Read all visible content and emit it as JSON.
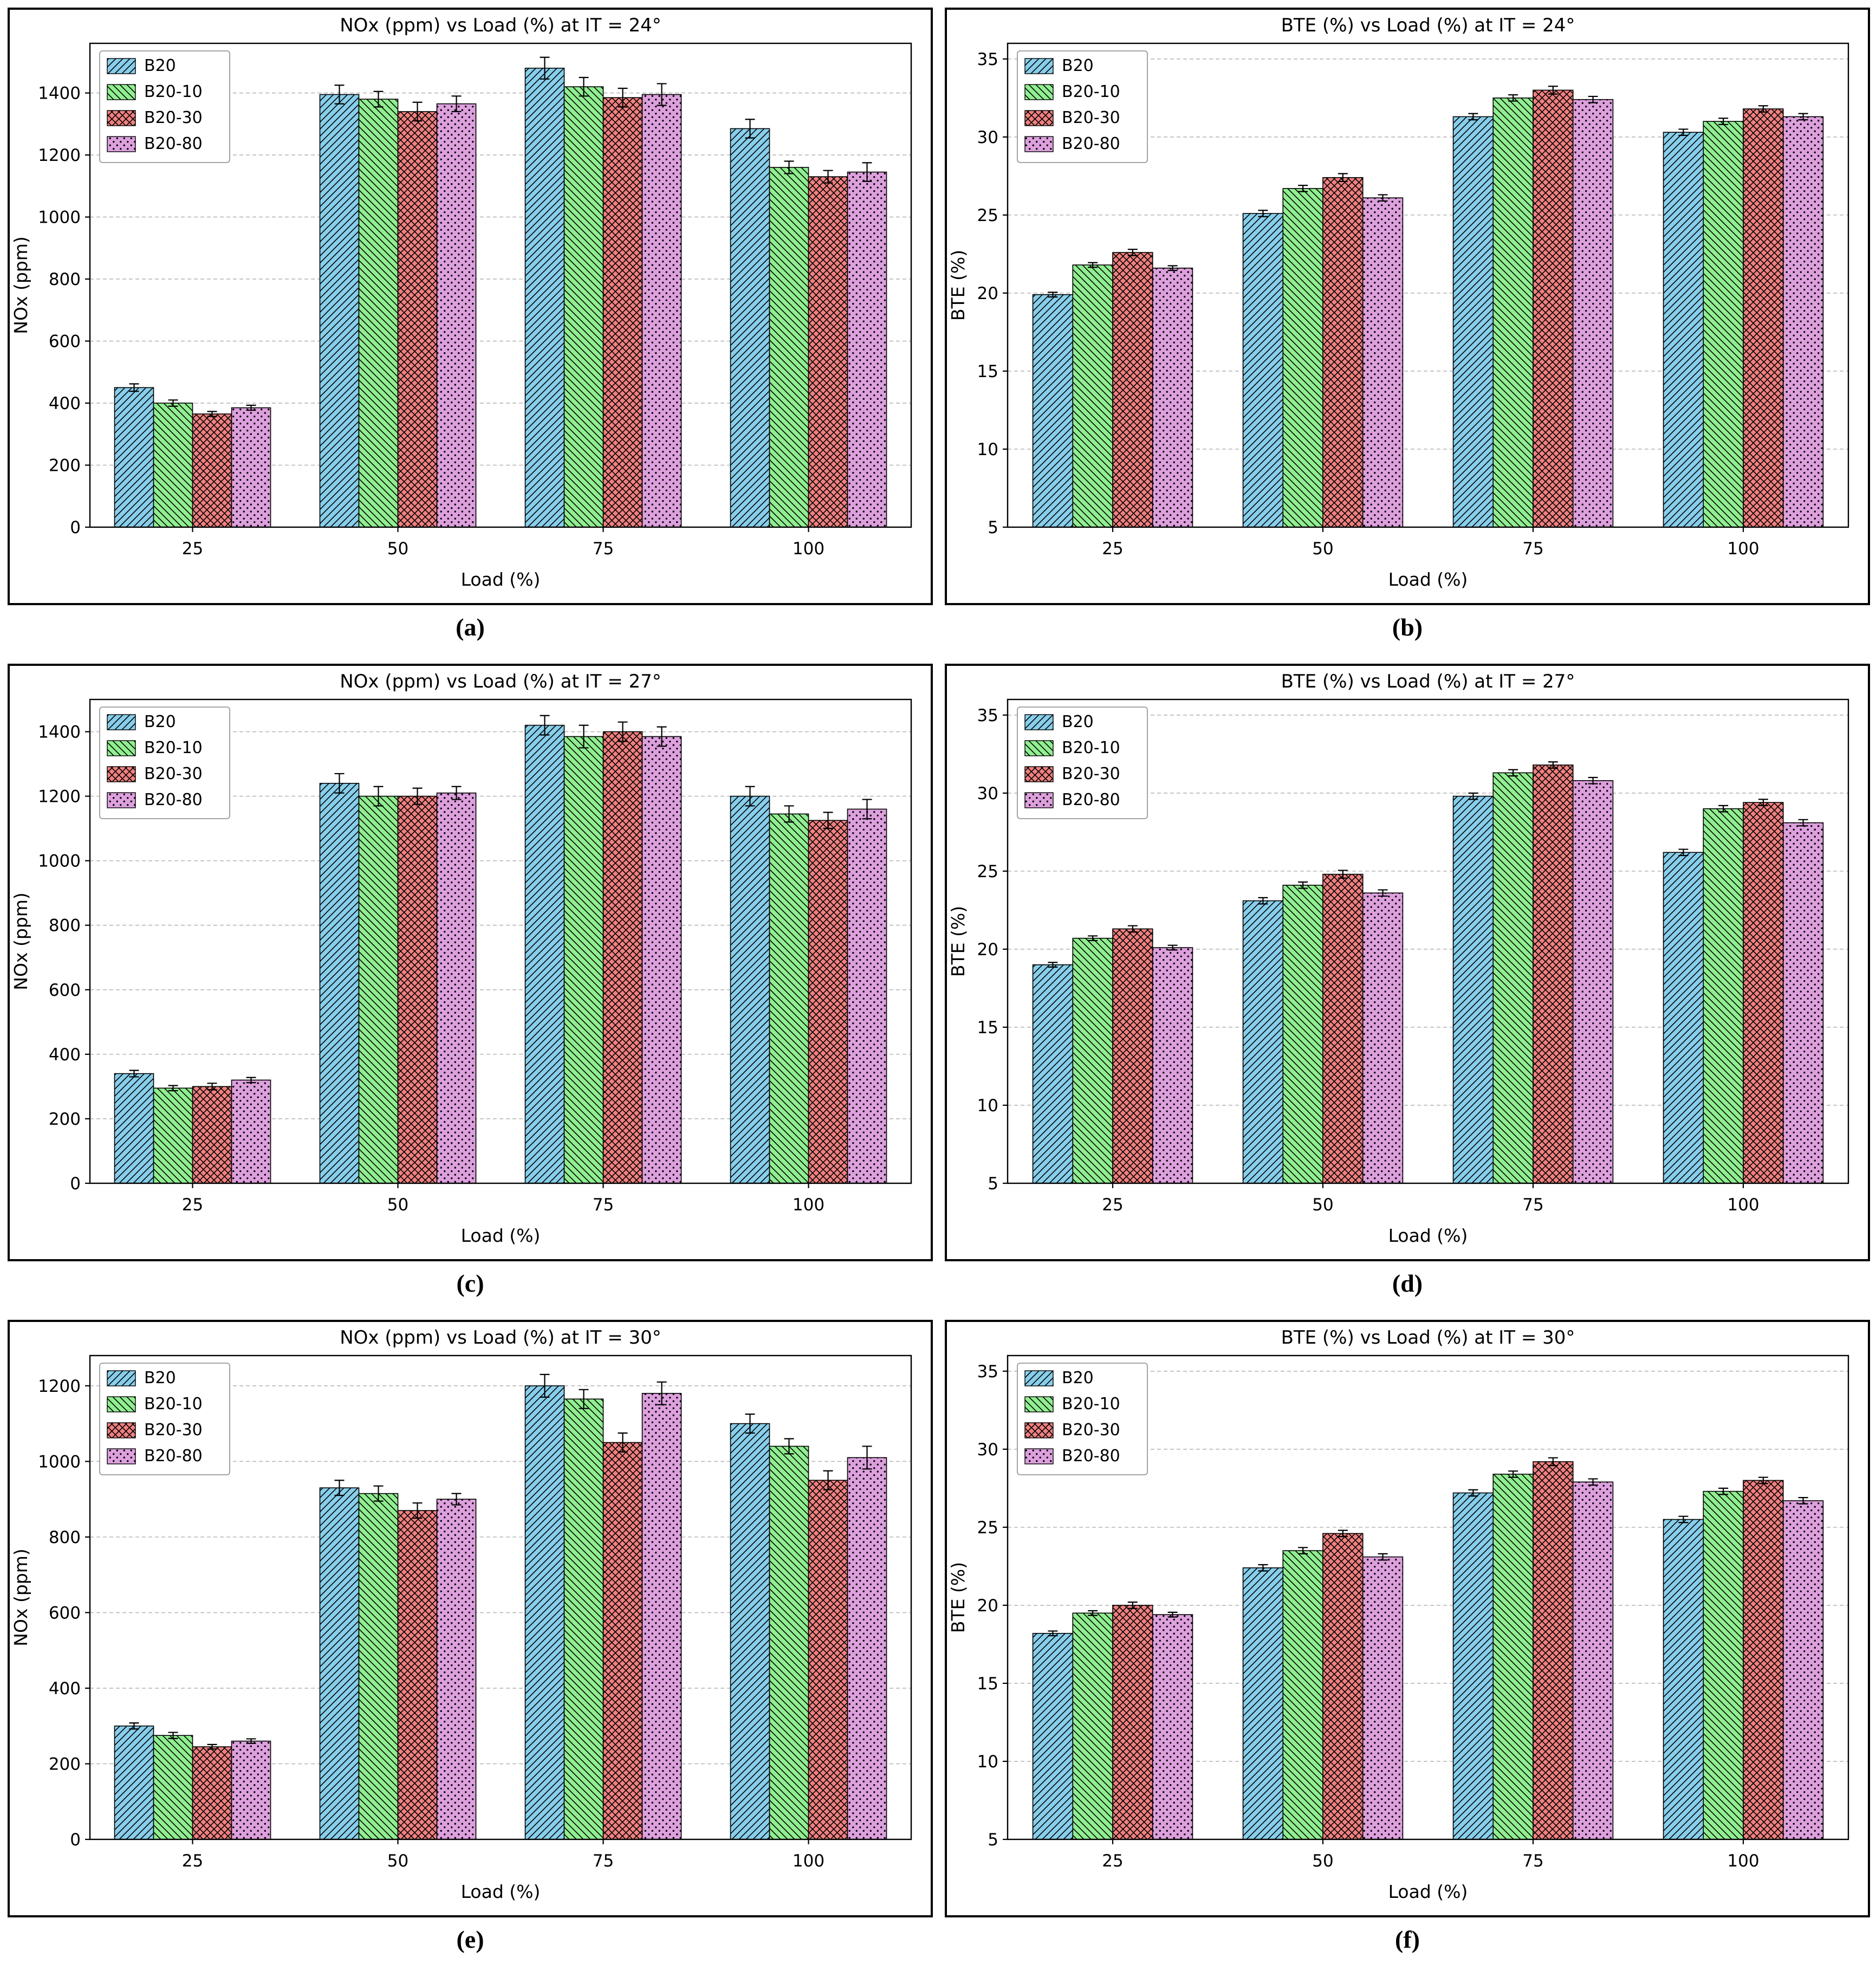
{
  "captions": [
    "(a)",
    "(b)",
    "(c)",
    "(d)",
    "(e)",
    "(f)"
  ],
  "series_labels": [
    "B20",
    "B20-10",
    "B20-30",
    "B20-80"
  ],
  "series_colors": [
    "#87CEEB",
    "#90EE90",
    "#F08080",
    "#DDA0DD"
  ],
  "series_hatches": [
    "/",
    "\\",
    "x",
    "."
  ],
  "grid_color": "#b8b8b8",
  "edge_color": "#000000",
  "chart_data": [
    {
      "type": "bar",
      "title": "NOx (ppm) vs Load (%) at IT = 24°",
      "xlabel": "Load (%)",
      "ylabel": "NOx (ppm)",
      "categories": [
        25,
        50,
        75,
        100
      ],
      "ylim": [
        0,
        1560
      ],
      "yticks": [
        0,
        200,
        400,
        600,
        800,
        1000,
        1200,
        1400
      ],
      "grid": true,
      "legend_position": "upper-left",
      "series": [
        {
          "name": "B20",
          "values": [
            450,
            1395,
            1480,
            1285
          ],
          "errors": [
            12,
            30,
            35,
            30
          ]
        },
        {
          "name": "B20-10",
          "values": [
            400,
            1380,
            1420,
            1160
          ],
          "errors": [
            10,
            25,
            30,
            20
          ]
        },
        {
          "name": "B20-30",
          "values": [
            365,
            1340,
            1385,
            1130
          ],
          "errors": [
            8,
            30,
            30,
            20
          ]
        },
        {
          "name": "B20-80",
          "values": [
            385,
            1365,
            1395,
            1145
          ],
          "errors": [
            8,
            25,
            35,
            30
          ]
        }
      ]
    },
    {
      "type": "bar",
      "title": "BTE (%) vs Load (%) at IT = 24°",
      "xlabel": "Load (%)",
      "ylabel": "BTE (%)",
      "categories": [
        25,
        50,
        75,
        100
      ],
      "ylim": [
        5,
        36
      ],
      "yticks": [
        5,
        10,
        15,
        20,
        25,
        30,
        35
      ],
      "grid": true,
      "legend_position": "upper-left",
      "series": [
        {
          "name": "B20",
          "values": [
            19.9,
            25.1,
            31.3,
            30.3
          ],
          "errors": [
            0.15,
            0.2,
            0.2,
            0.2
          ]
        },
        {
          "name": "B20-10",
          "values": [
            21.8,
            26.7,
            32.5,
            31.0
          ],
          "errors": [
            0.15,
            0.2,
            0.2,
            0.2
          ]
        },
        {
          "name": "B20-30",
          "values": [
            22.6,
            27.4,
            33.0,
            31.8
          ],
          "errors": [
            0.2,
            0.25,
            0.25,
            0.2
          ]
        },
        {
          "name": "B20-80",
          "values": [
            21.6,
            26.1,
            32.4,
            31.3
          ],
          "errors": [
            0.15,
            0.2,
            0.2,
            0.2
          ]
        }
      ]
    },
    {
      "type": "bar",
      "title": "NOx (ppm) vs Load (%) at IT = 27°",
      "xlabel": "Load (%)",
      "ylabel": "NOx (ppm)",
      "categories": [
        25,
        50,
        75,
        100
      ],
      "ylim": [
        0,
        1500
      ],
      "yticks": [
        0,
        200,
        400,
        600,
        800,
        1000,
        1200,
        1400
      ],
      "grid": true,
      "legend_position": "upper-left",
      "series": [
        {
          "name": "B20",
          "values": [
            340,
            1240,
            1420,
            1200
          ],
          "errors": [
            10,
            30,
            30,
            30
          ]
        },
        {
          "name": "B20-10",
          "values": [
            295,
            1200,
            1385,
            1145
          ],
          "errors": [
            8,
            30,
            35,
            25
          ]
        },
        {
          "name": "B20-30",
          "values": [
            300,
            1200,
            1400,
            1125
          ],
          "errors": [
            10,
            25,
            30,
            25
          ]
        },
        {
          "name": "B20-80",
          "values": [
            320,
            1210,
            1385,
            1160
          ],
          "errors": [
            8,
            20,
            30,
            30
          ]
        }
      ]
    },
    {
      "type": "bar",
      "title": "BTE (%) vs Load (%) at IT = 27°",
      "xlabel": "Load (%)",
      "ylabel": "BTE (%)",
      "categories": [
        25,
        50,
        75,
        100
      ],
      "ylim": [
        5,
        36
      ],
      "yticks": [
        5,
        10,
        15,
        20,
        25,
        30,
        35
      ],
      "grid": true,
      "legend_position": "upper-left",
      "series": [
        {
          "name": "B20",
          "values": [
            19.0,
            23.1,
            29.8,
            26.2
          ],
          "errors": [
            0.15,
            0.2,
            0.2,
            0.2
          ]
        },
        {
          "name": "B20-10",
          "values": [
            20.7,
            24.1,
            31.3,
            29.0
          ],
          "errors": [
            0.15,
            0.2,
            0.2,
            0.2
          ]
        },
        {
          "name": "B20-30",
          "values": [
            21.3,
            24.8,
            31.8,
            29.4
          ],
          "errors": [
            0.2,
            0.25,
            0.2,
            0.2
          ]
        },
        {
          "name": "B20-80",
          "values": [
            20.1,
            23.6,
            30.8,
            28.1
          ],
          "errors": [
            0.15,
            0.2,
            0.2,
            0.2
          ]
        }
      ]
    },
    {
      "type": "bar",
      "title": "NOx (ppm) vs Load (%) at IT = 30°",
      "xlabel": "Load (%)",
      "ylabel": "NOx (ppm)",
      "categories": [
        25,
        50,
        75,
        100
      ],
      "ylim": [
        0,
        1280
      ],
      "yticks": [
        0,
        200,
        400,
        600,
        800,
        1000,
        1200
      ],
      "grid": true,
      "legend_position": "upper-left",
      "series": [
        {
          "name": "B20",
          "values": [
            300,
            930,
            1200,
            1100
          ],
          "errors": [
            8,
            20,
            30,
            25
          ]
        },
        {
          "name": "B20-10",
          "values": [
            275,
            915,
            1165,
            1040
          ],
          "errors": [
            8,
            20,
            25,
            20
          ]
        },
        {
          "name": "B20-30",
          "values": [
            245,
            870,
            1050,
            950
          ],
          "errors": [
            6,
            20,
            25,
            25
          ]
        },
        {
          "name": "B20-80",
          "values": [
            260,
            900,
            1180,
            1010
          ],
          "errors": [
            6,
            15,
            30,
            30
          ]
        }
      ]
    },
    {
      "type": "bar",
      "title": "BTE (%) vs Load (%) at IT = 30°",
      "xlabel": "Load (%)",
      "ylabel": "BTE (%)",
      "categories": [
        25,
        50,
        75,
        100
      ],
      "ylim": [
        5,
        36
      ],
      "yticks": [
        5,
        10,
        15,
        20,
        25,
        30,
        35
      ],
      "grid": true,
      "legend_position": "upper-left",
      "series": [
        {
          "name": "B20",
          "values": [
            18.2,
            22.4,
            27.2,
            25.5
          ],
          "errors": [
            0.15,
            0.2,
            0.2,
            0.2
          ]
        },
        {
          "name": "B20-10",
          "values": [
            19.5,
            23.5,
            28.4,
            27.3
          ],
          "errors": [
            0.15,
            0.2,
            0.2,
            0.2
          ]
        },
        {
          "name": "B20-30",
          "values": [
            20.0,
            24.6,
            29.2,
            28.0
          ],
          "errors": [
            0.2,
            0.2,
            0.25,
            0.2
          ]
        },
        {
          "name": "B20-80",
          "values": [
            19.4,
            23.1,
            27.9,
            26.7
          ],
          "errors": [
            0.15,
            0.2,
            0.2,
            0.2
          ]
        }
      ]
    }
  ]
}
